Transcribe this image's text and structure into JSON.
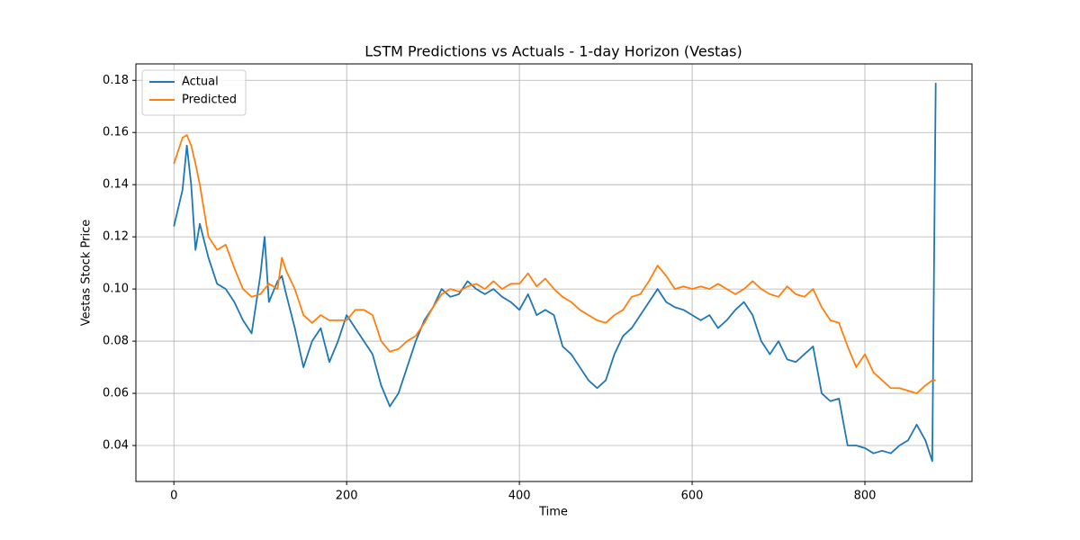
{
  "chart_data": {
    "type": "line",
    "title": "LSTM Predictions vs Actuals - 1-day Horizon (Vestas)",
    "xlabel": "Time",
    "ylabel": "Vestas Stock Price",
    "x": [
      0,
      10,
      15,
      20,
      25,
      30,
      40,
      50,
      60,
      70,
      80,
      90,
      100,
      105,
      110,
      120,
      125,
      130,
      140,
      150,
      160,
      170,
      180,
      190,
      200,
      210,
      220,
      230,
      240,
      250,
      260,
      270,
      280,
      290,
      300,
      310,
      320,
      330,
      340,
      350,
      360,
      370,
      380,
      390,
      400,
      410,
      420,
      430,
      440,
      450,
      460,
      470,
      480,
      490,
      500,
      510,
      520,
      530,
      540,
      550,
      560,
      570,
      580,
      590,
      600,
      610,
      620,
      630,
      640,
      650,
      660,
      670,
      680,
      690,
      700,
      710,
      720,
      730,
      740,
      750,
      760,
      770,
      780,
      790,
      800,
      810,
      820,
      830,
      840,
      850,
      860,
      870,
      878,
      882
    ],
    "series": [
      {
        "name": "Actual",
        "color": "#1f77b4",
        "values": [
          0.124,
          0.138,
          0.155,
          0.14,
          0.115,
          0.125,
          0.112,
          0.102,
          0.1,
          0.095,
          0.088,
          0.083,
          0.105,
          0.12,
          0.095,
          0.103,
          0.105,
          0.098,
          0.085,
          0.07,
          0.08,
          0.085,
          0.072,
          0.08,
          0.09,
          0.085,
          0.08,
          0.075,
          0.063,
          0.055,
          0.06,
          0.07,
          0.08,
          0.088,
          0.093,
          0.1,
          0.097,
          0.098,
          0.103,
          0.1,
          0.098,
          0.1,
          0.097,
          0.095,
          0.092,
          0.098,
          0.09,
          0.092,
          0.09,
          0.078,
          0.075,
          0.07,
          0.065,
          0.062,
          0.065,
          0.075,
          0.082,
          0.085,
          0.09,
          0.095,
          0.1,
          0.095,
          0.093,
          0.092,
          0.09,
          0.088,
          0.09,
          0.085,
          0.088,
          0.092,
          0.095,
          0.09,
          0.08,
          0.075,
          0.08,
          0.073,
          0.072,
          0.075,
          0.078,
          0.06,
          0.057,
          0.058,
          0.04,
          0.04,
          0.039,
          0.037,
          0.038,
          0.037,
          0.04,
          0.042,
          0.048,
          0.042,
          0.034,
          0.179
        ]
      },
      {
        "name": "Predicted",
        "color": "#ff7f0e",
        "values": [
          0.148,
          0.158,
          0.159,
          0.155,
          0.148,
          0.14,
          0.12,
          0.115,
          0.117,
          0.108,
          0.1,
          0.097,
          0.098,
          0.1,
          0.102,
          0.1,
          0.112,
          0.107,
          0.1,
          0.09,
          0.087,
          0.09,
          0.088,
          0.088,
          0.088,
          0.092,
          0.092,
          0.09,
          0.08,
          0.076,
          0.077,
          0.08,
          0.082,
          0.087,
          0.093,
          0.098,
          0.1,
          0.099,
          0.101,
          0.102,
          0.1,
          0.103,
          0.1,
          0.102,
          0.102,
          0.106,
          0.101,
          0.104,
          0.1,
          0.097,
          0.095,
          0.092,
          0.09,
          0.088,
          0.087,
          0.09,
          0.092,
          0.097,
          0.098,
          0.103,
          0.109,
          0.105,
          0.1,
          0.101,
          0.1,
          0.101,
          0.1,
          0.102,
          0.1,
          0.098,
          0.1,
          0.103,
          0.1,
          0.098,
          0.097,
          0.101,
          0.098,
          0.097,
          0.1,
          0.093,
          0.088,
          0.087,
          0.078,
          0.07,
          0.075,
          0.068,
          0.065,
          0.062,
          0.062,
          0.061,
          0.06,
          0.063,
          0.065,
          0.065
        ]
      }
    ],
    "xlim": [
      -44,
      924
    ],
    "xticks": [
      0,
      200,
      400,
      600,
      800
    ],
    "ylim": [
      0.0262,
      0.1863
    ],
    "yticks": [
      0.04,
      0.06,
      0.08,
      {
        "value": 0.1,
        "label": "0.10"
      },
      0.12,
      0.14,
      0.16,
      0.18
    ],
    "grid": true,
    "legend": "upper-left"
  }
}
